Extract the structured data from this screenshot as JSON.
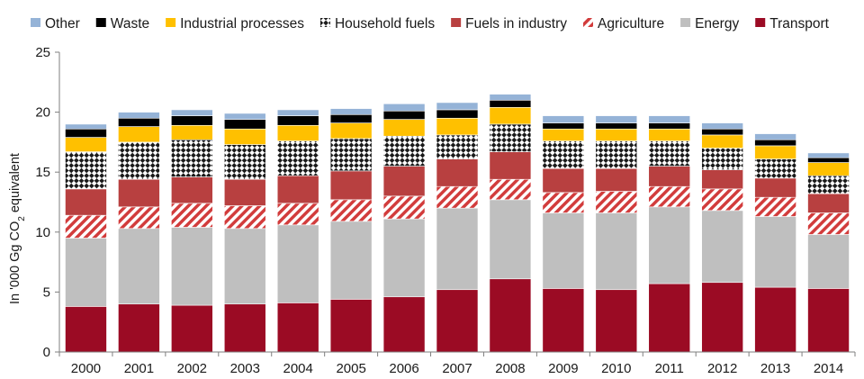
{
  "chart_data": {
    "type": "bar",
    "stacked": true,
    "categories": [
      "2000",
      "2001",
      "2002",
      "2003",
      "2004",
      "2005",
      "2006",
      "2007",
      "2008",
      "2009",
      "2010",
      "2011",
      "2012",
      "2013",
      "2014"
    ],
    "ylabel": "In '000 Gg CO2 equivalent",
    "ylabel_parts": [
      "In '000 Gg CO",
      "2",
      " equivalent"
    ],
    "ylim": [
      0,
      25
    ],
    "yticks": [
      0,
      5,
      10,
      15,
      20,
      25
    ],
    "grid": false,
    "legend_position": "top",
    "legend_order": [
      "Other",
      "Waste",
      "Industrial processes",
      "Household fuels",
      "Fuels in industry",
      "Agriculture",
      "Energy",
      "Transport"
    ],
    "series": [
      {
        "name": "Transport",
        "color": "#9b0b24",
        "pattern": "solid",
        "values": [
          3.8,
          4.0,
          3.9,
          4.0,
          4.1,
          4.4,
          4.6,
          5.2,
          6.1,
          5.3,
          5.2,
          5.7,
          5.8,
          5.4,
          5.3
        ]
      },
      {
        "name": "Energy",
        "color": "#bfbfbf",
        "pattern": "solid",
        "values": [
          5.7,
          6.3,
          6.5,
          6.3,
          6.5,
          6.5,
          6.5,
          6.8,
          6.6,
          6.3,
          6.4,
          6.4,
          6.0,
          5.9,
          4.5
        ]
      },
      {
        "name": "Agriculture",
        "color": "#c83c3c",
        "pattern": "diagonal-stripes",
        "values": [
          1.9,
          1.8,
          2.0,
          1.9,
          1.8,
          1.8,
          1.9,
          1.8,
          1.7,
          1.7,
          1.8,
          1.7,
          1.8,
          1.6,
          1.8
        ]
      },
      {
        "name": "Fuels in industry",
        "color": "#b84040",
        "pattern": "solid",
        "values": [
          2.2,
          2.3,
          2.2,
          2.2,
          2.3,
          2.4,
          2.5,
          2.3,
          2.3,
          2.0,
          1.9,
          1.7,
          1.6,
          1.6,
          1.6
        ]
      },
      {
        "name": "Household fuels",
        "color": "#1a1a1a",
        "pattern": "checker",
        "values": [
          3.1,
          3.1,
          3.1,
          2.9,
          2.9,
          2.7,
          2.5,
          2.0,
          2.3,
          2.3,
          2.3,
          2.1,
          1.8,
          1.6,
          1.5
        ]
      },
      {
        "name": "Industrial processes",
        "color": "#ffc000",
        "pattern": "solid",
        "values": [
          1.2,
          1.3,
          1.2,
          1.3,
          1.3,
          1.3,
          1.4,
          1.4,
          1.4,
          1.0,
          1.0,
          1.0,
          1.1,
          1.1,
          1.1
        ]
      },
      {
        "name": "Waste",
        "color": "#000000",
        "pattern": "solid",
        "values": [
          0.7,
          0.7,
          0.8,
          0.8,
          0.8,
          0.7,
          0.7,
          0.7,
          0.6,
          0.5,
          0.5,
          0.5,
          0.5,
          0.5,
          0.4
        ]
      },
      {
        "name": "Other",
        "color": "#95b3d7",
        "pattern": "solid",
        "values": [
          0.4,
          0.5,
          0.5,
          0.5,
          0.5,
          0.5,
          0.6,
          0.6,
          0.5,
          0.6,
          0.6,
          0.6,
          0.5,
          0.5,
          0.4
        ]
      }
    ]
  }
}
